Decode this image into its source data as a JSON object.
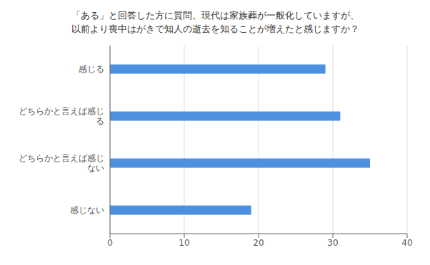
{
  "chart_data": {
    "type": "bar",
    "orientation": "horizontal",
    "title": "「ある」と回答した方に質問。現代は家族葬が一般化していますが、\n以前より喪中はがきで知人の逝去を知ることが増えたと感じますか？",
    "categories": [
      "感じる",
      "どちらかと言えば感じ\nる",
      "どちらかと言えば感じ\nない",
      "感じない"
    ],
    "values": [
      29,
      31,
      35,
      19
    ],
    "color": "#4D8FE0",
    "xlim": [
      0,
      40
    ],
    "xticks": [
      0,
      10,
      20,
      30,
      40
    ],
    "grid": true
  }
}
